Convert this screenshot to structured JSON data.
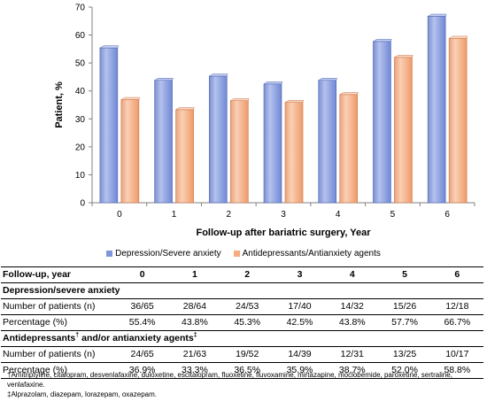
{
  "chart_data": {
    "type": "bar",
    "categories": [
      "0",
      "1",
      "2",
      "3",
      "4",
      "5",
      "6"
    ],
    "xlabel": "Follow-up after bariatric surgery, Year",
    "ylabel": "Patient, %",
    "ylim": [
      0,
      70
    ],
    "yticks": [
      "0",
      "10",
      "20",
      "30",
      "40",
      "50",
      "60",
      "70"
    ],
    "grid": false,
    "legend_position": "bottom",
    "series": [
      {
        "name": "Depression/Severe anxiety",
        "color": "#8096DA",
        "values": [
          55.4,
          43.8,
          45.3,
          42.5,
          43.8,
          57.7,
          66.7
        ]
      },
      {
        "name": "Antidepressants/Antianxiety agents",
        "color": "#F5AC80",
        "values": [
          36.9,
          33.3,
          36.5,
          35.9,
          38.7,
          52.0,
          58.8
        ]
      }
    ]
  },
  "table": {
    "header_label": "Follow-up, year",
    "years": [
      "0",
      "1",
      "2",
      "3",
      "4",
      "5",
      "6"
    ],
    "sections": [
      {
        "title_main": "Depression/severe anxiety",
        "title_sup1": "",
        "title_mid": "",
        "title_sup2": "",
        "rows": [
          {
            "label": "Number of patients (n)",
            "values": [
              "36/65",
              "28/64",
              "24/53",
              "17/40",
              "14/32",
              "15/26",
              "12/18"
            ]
          },
          {
            "label": "Percentage (%)",
            "values": [
              "55.4%",
              "43.8%",
              "45.3%",
              "42.5%",
              "43.8%",
              "57.7%",
              "66.7%"
            ]
          }
        ]
      },
      {
        "title_main": "Antidepressants",
        "title_sup1": "†",
        "title_mid": " and/or antianxiety agents",
        "title_sup2": "‡",
        "rows": [
          {
            "label": "Number of patients (n)",
            "values": [
              "24/65",
              "21/63",
              "19/52",
              "14/39",
              "12/31",
              "13/25",
              "10/17"
            ]
          },
          {
            "label": "Percentage (%)",
            "values": [
              "36.9%",
              "33.3%",
              "36.5%",
              "35.9%",
              "38.7%",
              "52.0%",
              "58.8%"
            ]
          }
        ]
      }
    ]
  },
  "footnotes": {
    "dagger": "†Amitriptyline, citalopram, desvenlafaxine, duloxetine, escitalopram, fluoxetine, fluvoxamine, mirtazapine, moclobemide, paroxetine, sertraline, venlafaxine.",
    "double_dagger": "‡Alprazolam, diazepam, lorazepam, oxazepam."
  }
}
